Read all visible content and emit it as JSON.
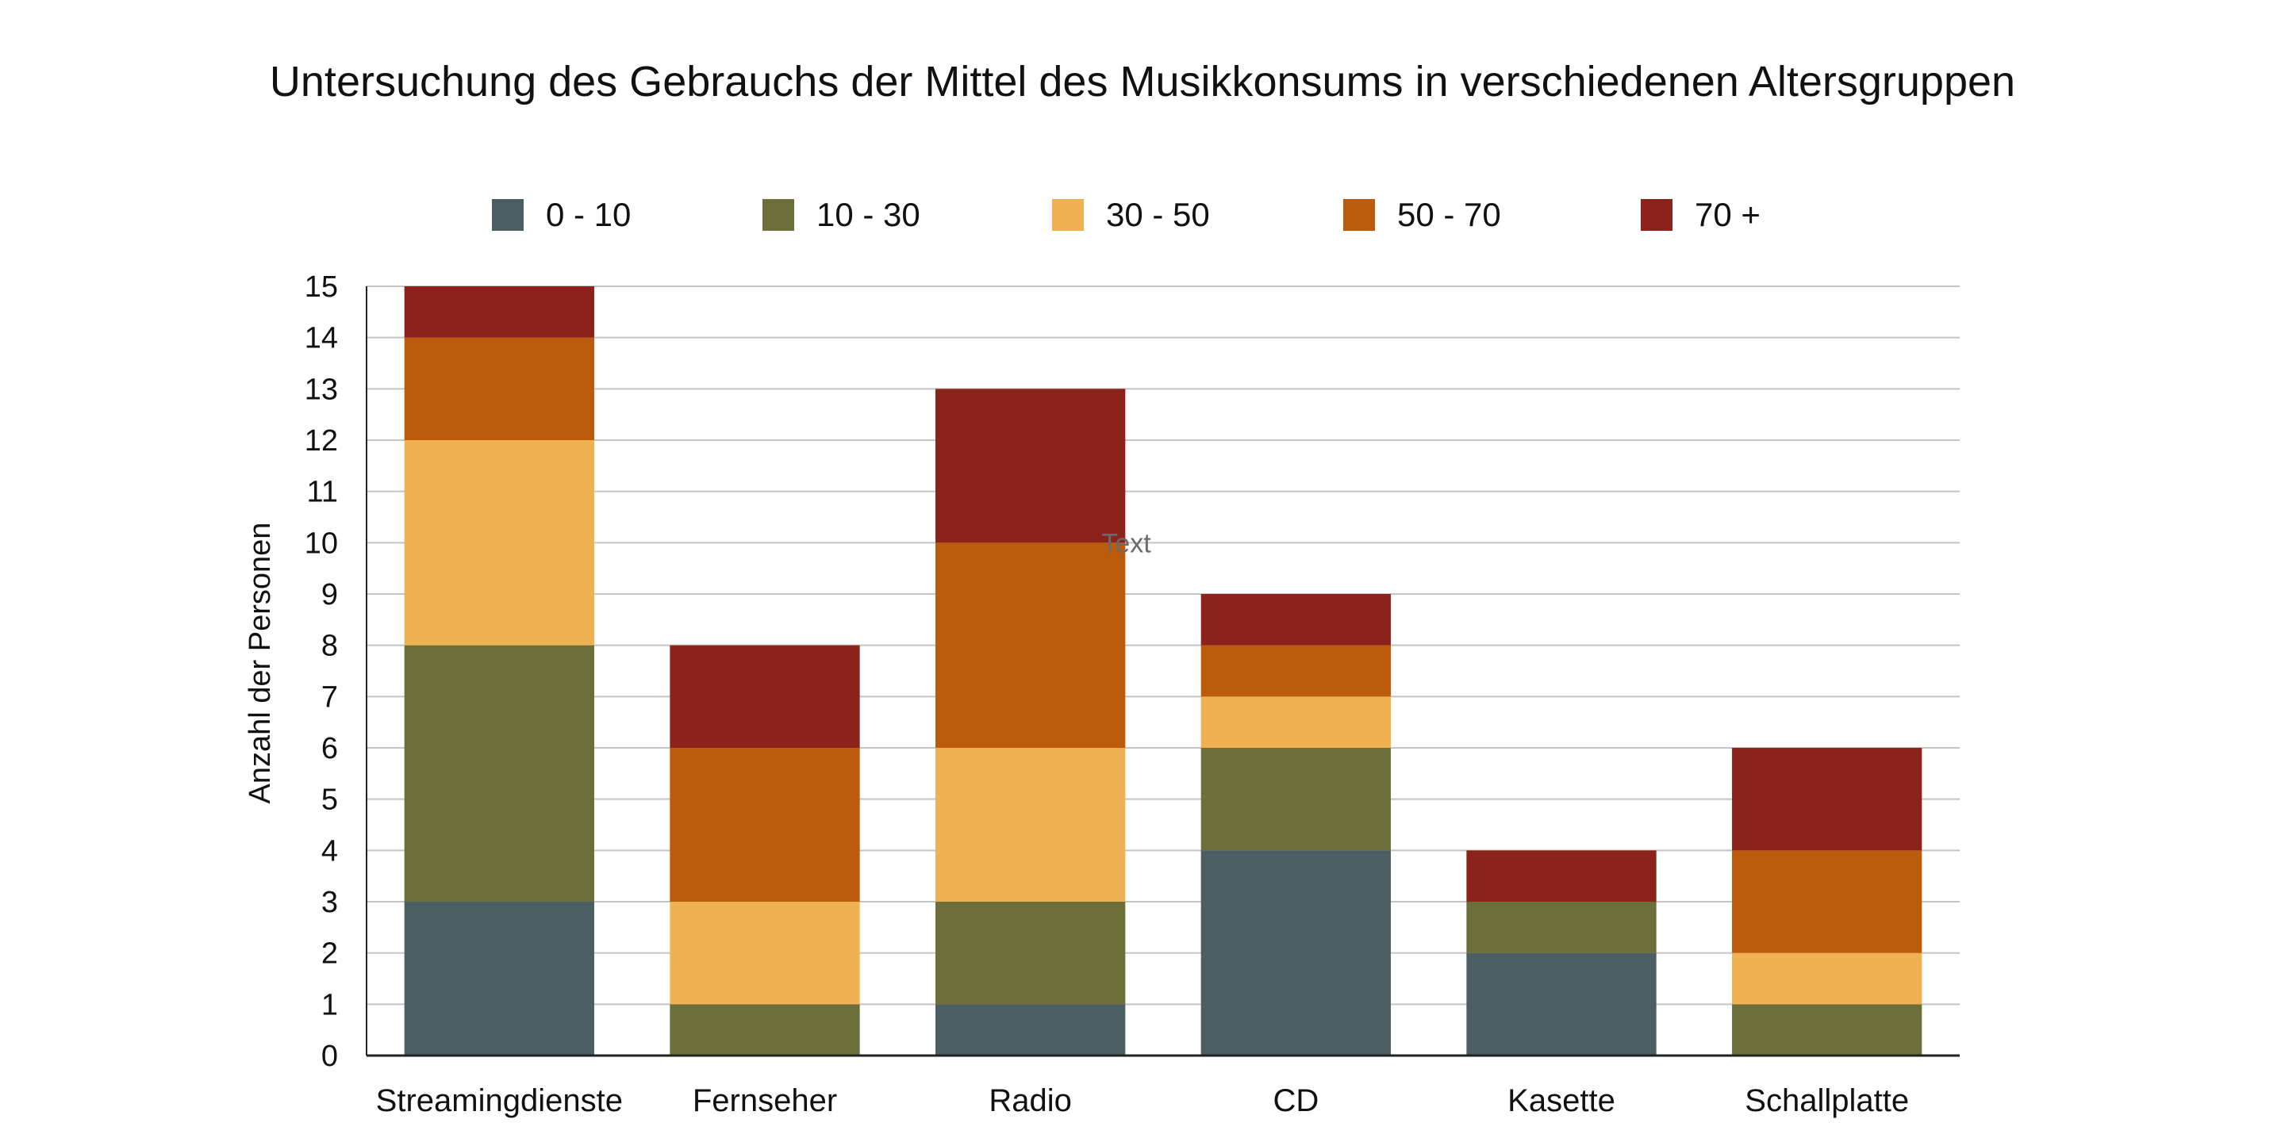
{
  "chart_data": {
    "type": "bar",
    "stacked": true,
    "title": "Untersuchung des Gebrauchs der Mittel des Musikkonsums in verschiedenen Altersgruppen",
    "xlabel": "",
    "ylabel": "Anzahl der Personen",
    "ylim": [
      0,
      15
    ],
    "yticks": [
      "0",
      "1",
      "2",
      "3",
      "4",
      "5",
      "6",
      "7",
      "8",
      "9",
      "10",
      "11",
      "12",
      "13",
      "14",
      "15"
    ],
    "grid": true,
    "legend_position": "top",
    "categories": [
      "Streamingdienste",
      "Fernseher",
      "Radio",
      "CD",
      "Kasette",
      "Schallplatte"
    ],
    "series": [
      {
        "name": "0 - 10",
        "color": "#4a5e63",
        "values": [
          3,
          0,
          1,
          4,
          2,
          0
        ]
      },
      {
        "name": "10 - 30",
        "color": "#6d6f3b",
        "values": [
          5,
          1,
          2,
          2,
          1,
          1
        ]
      },
      {
        "name": "30 - 50",
        "color": "#f0b153",
        "values": [
          4,
          2,
          3,
          1,
          0,
          1
        ]
      },
      {
        "name": "50 - 70",
        "color": "#bb5b0b",
        "values": [
          2,
          3,
          4,
          1,
          0,
          2
        ]
      },
      {
        "name": "70 +",
        "color": "#8b231c",
        "values": [
          1,
          2,
          3,
          1,
          1,
          2
        ]
      }
    ],
    "annotations": [
      {
        "text": "Text",
        "near_category": "Radio",
        "y": 10
      }
    ]
  }
}
